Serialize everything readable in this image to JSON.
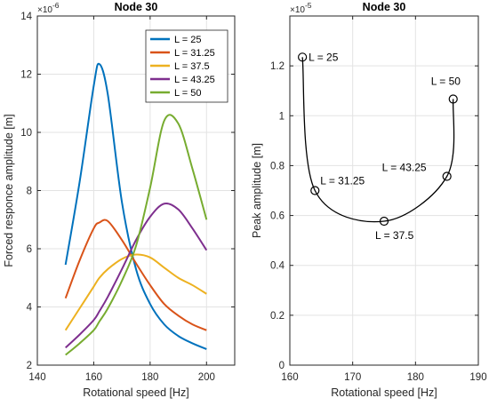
{
  "chart_data": [
    {
      "type": "line",
      "title": "Node 30",
      "xlabel": "Rotational speed [Hz]",
      "ylabel": "Forced responce amplitude [m]",
      "y_exponent_label": "×10",
      "y_exponent_power": "-6",
      "xlim": [
        140,
        210
      ],
      "ylim": [
        2,
        14
      ],
      "xticks": [
        140,
        160,
        180,
        200
      ],
      "yticks": [
        2,
        4,
        6,
        8,
        10,
        12,
        14
      ],
      "xtick_labels": [
        "140",
        "160",
        "180",
        "200"
      ],
      "ytick_labels": [
        "2",
        "4",
        "6",
        "8",
        "10",
        "12",
        "14"
      ],
      "grid": true,
      "legend_position": "top-right",
      "x": [
        150,
        155,
        160,
        162,
        165,
        170,
        175,
        180,
        185,
        190,
        195,
        200
      ],
      "series": [
        {
          "name": "L = 25",
          "color": "#0072BD",
          "values": [
            5.45,
            8.3,
            11.6,
            12.35,
            11.3,
            7.6,
            5.3,
            4.1,
            3.4,
            3.0,
            2.75,
            2.55
          ]
        },
        {
          "name": "L = 31.25",
          "color": "#D95319",
          "values": [
            4.3,
            5.6,
            6.7,
            6.9,
            6.95,
            6.3,
            5.5,
            4.75,
            4.1,
            3.7,
            3.4,
            3.2
          ]
        },
        {
          "name": "L = 37.5",
          "color": "#EDB120",
          "values": [
            3.2,
            3.95,
            4.7,
            5.0,
            5.3,
            5.65,
            5.8,
            5.7,
            5.35,
            5.0,
            4.75,
            4.45
          ]
        },
        {
          "name": "L = 43.25",
          "color": "#7E2F8E",
          "values": [
            2.6,
            3.05,
            3.55,
            3.85,
            4.35,
            5.3,
            6.3,
            7.1,
            7.55,
            7.35,
            6.7,
            5.95
          ]
        },
        {
          "name": "L = 50",
          "color": "#77AC30",
          "values": [
            2.35,
            2.75,
            3.2,
            3.5,
            3.95,
            4.9,
            6.1,
            8.1,
            10.4,
            10.3,
            8.75,
            7.0
          ]
        }
      ]
    },
    {
      "type": "line",
      "title": "Node 30",
      "xlabel": "Rotational speed [Hz]",
      "ylabel": "Peak amplitude [m]",
      "y_exponent_label": "×10",
      "y_exponent_power": "-5",
      "xlim": [
        160,
        190
      ],
      "ylim": [
        0,
        1.4
      ],
      "xticks": [
        160,
        170,
        180,
        190
      ],
      "yticks": [
        0,
        0.2,
        0.4,
        0.6,
        0.8,
        1,
        1.2
      ],
      "xtick_labels": [
        "160",
        "170",
        "180",
        "190"
      ],
      "ytick_labels": [
        "0",
        "0.2",
        "0.4",
        "0.6",
        "0.8",
        "1",
        "1.2"
      ],
      "grid": true,
      "line_color": "#000000",
      "points": [
        {
          "label": "L = 25",
          "x": 162,
          "y": 1.235
        },
        {
          "label": "L = 31.25",
          "x": 164,
          "y": 0.7
        },
        {
          "label": "L = 37.5",
          "x": 175,
          "y": 0.577
        },
        {
          "label": "L = 43.25",
          "x": 185,
          "y": 0.757
        },
        {
          "label": "L = 50",
          "x": 186,
          "y": 1.067
        }
      ]
    }
  ]
}
